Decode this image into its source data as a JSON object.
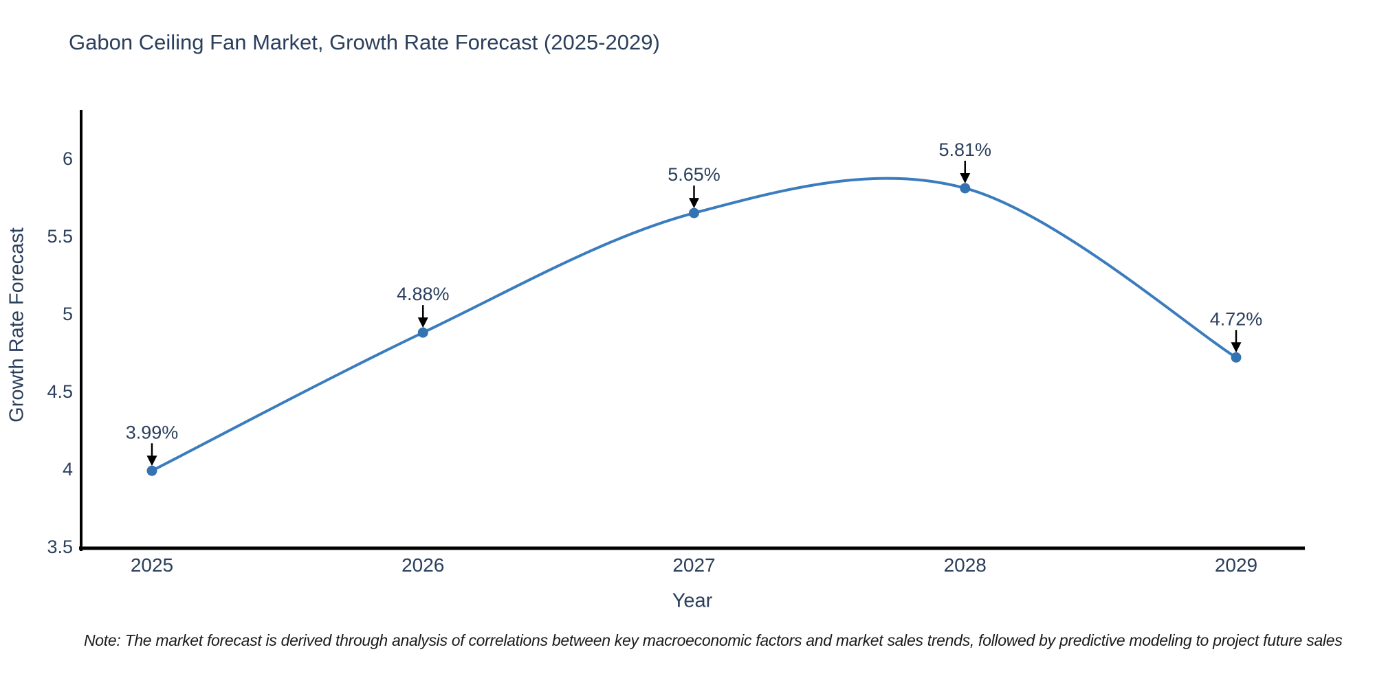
{
  "page": {
    "title": "Gabon Ceiling Fan Market, Growth Rate Forecast (2025-2029)",
    "note": "Note: The market forecast is derived through analysis of correlations between key macroeconomic factors and market sales trends, followed by predictive modeling to project future sales"
  },
  "chart_data": {
    "type": "line",
    "title": "Gabon Ceiling Fan Market, Growth Rate Forecast (2025-2029)",
    "xlabel": "Year",
    "ylabel": "Growth Rate Forecast",
    "categories": [
      "2025",
      "2026",
      "2027",
      "2028",
      "2029"
    ],
    "series": [
      {
        "name": "Growth Rate Forecast",
        "values": [
          3.99,
          4.88,
          5.65,
          5.81,
          4.72
        ]
      }
    ],
    "point_labels": [
      "3.99%",
      "4.88%",
      "5.65%",
      "5.81%",
      "4.72%"
    ],
    "yticks": [
      3.5,
      4,
      4.5,
      5,
      5.5,
      6
    ],
    "ylim": [
      3.5,
      6.32
    ],
    "line_shape": "spline",
    "markers": true,
    "grid": false,
    "legend_position": "none",
    "colors": {
      "line": "#3a7cbe",
      "marker": "#3473b2",
      "axis": "#000000",
      "tick_text": "#2b3f5c",
      "annotation_text": "#2b3f5c",
      "arrow": "#000000",
      "note_text": "#1a1a1a",
      "background": "#ffffff"
    }
  }
}
